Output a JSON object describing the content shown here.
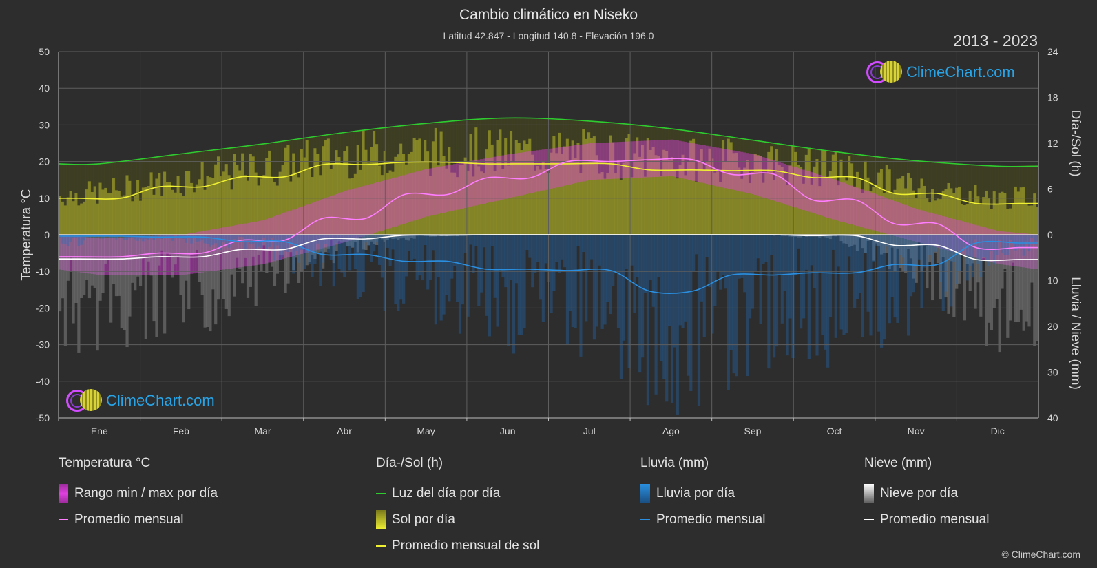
{
  "title": "Cambio climático en Niseko",
  "subtitle": "Latitud 42.847 - Longitud 140.8 - Elevación 196.0",
  "period": "2013 - 2023",
  "logo_text": "ClimeChart.com",
  "copyright": "© ClimeChart.com",
  "colors": {
    "background": "#2d2d2d",
    "temp_range": "#e040e0",
    "temp_avg": "#ff7dff",
    "daylight": "#2ecc2e",
    "sun_bars": "#bdbd2a",
    "sun_avg": "#f0f033",
    "rain_bars": "#1f6fbf",
    "rain_avg": "#2a8fe0",
    "snow_bars": "#9a9a9a",
    "snow_avg": "#ffffff",
    "logo": "#28a5e8"
  },
  "legend": {
    "temperature": {
      "title": "Temperatura °C",
      "items": [
        "Rango min / max por día",
        "Promedio mensual"
      ]
    },
    "sun": {
      "title": "Día-/Sol (h)",
      "items": [
        "Luz del día por día",
        "Sol por día",
        "Promedio mensual de sol"
      ]
    },
    "rain": {
      "title": "Lluvia (mm)",
      "items": [
        "Lluvia por día",
        "Promedio mensual"
      ]
    },
    "snow": {
      "title": "Nieve (mm)",
      "items": [
        "Nieve por día",
        "Promedio mensual"
      ]
    }
  },
  "chart_data": {
    "type": "line",
    "categories": [
      "Ene",
      "Feb",
      "Mar",
      "Abr",
      "May",
      "Jun",
      "Jul",
      "Ago",
      "Sep",
      "Oct",
      "Nov",
      "Dic"
    ],
    "y_left": {
      "label": "Temperatura °C",
      "range": [
        -50,
        50
      ],
      "ticks": [
        50,
        40,
        30,
        20,
        10,
        0,
        -10,
        -20,
        -30,
        -40,
        -50
      ]
    },
    "y_right_top": {
      "label": "Día-/Sol (h)",
      "range": [
        0,
        24
      ],
      "ticks": [
        24,
        18,
        12,
        6,
        0
      ]
    },
    "y_right_bottom": {
      "label": "Lluvia / Nieve (mm)",
      "range": [
        0,
        40
      ],
      "ticks": [
        0,
        10,
        20,
        30,
        40
      ]
    },
    "grid": true,
    "series": [
      {
        "name": "Luz del día por día",
        "unit": "h",
        "values": [
          9.3,
          10.6,
          11.9,
          13.4,
          14.6,
          15.3,
          14.9,
          13.9,
          12.4,
          10.9,
          9.7,
          9.0
        ]
      },
      {
        "name": "Promedio mensual de sol",
        "unit": "h",
        "values": [
          4.8,
          6.3,
          7.6,
          9.2,
          9.5,
          9.3,
          9.3,
          8.5,
          8.4,
          7.5,
          5.4,
          4.1
        ]
      },
      {
        "name": "Promedio mensual",
        "unit": "°C",
        "values": [
          -6.0,
          -5.0,
          -1.5,
          4.5,
          11.0,
          15.5,
          20.0,
          20.5,
          16.5,
          9.5,
          3.0,
          -3.5
        ]
      },
      {
        "name": "Rango min / max por día",
        "unit": "°C",
        "min": [
          -11,
          -11,
          -8,
          -2,
          5,
          10,
          15,
          16,
          11,
          4,
          -2,
          -8
        ],
        "max": [
          -1,
          0,
          4,
          12,
          18,
          22,
          25,
          26,
          22,
          15,
          7,
          1
        ]
      },
      {
        "name": "Lluvia Promedio mensual",
        "unit": "mm",
        "values": [
          0.3,
          0.5,
          1.5,
          4.3,
          5.8,
          7.5,
          7.8,
          12.3,
          8.8,
          8.3,
          6.5,
          1.8
        ]
      },
      {
        "name": "Nieve Promedio mensual",
        "unit": "mm",
        "values": [
          5.3,
          4.8,
          3.2,
          0.9,
          0.1,
          0.0,
          0.0,
          0.0,
          0.0,
          0.2,
          2.3,
          5.4
        ]
      }
    ]
  }
}
